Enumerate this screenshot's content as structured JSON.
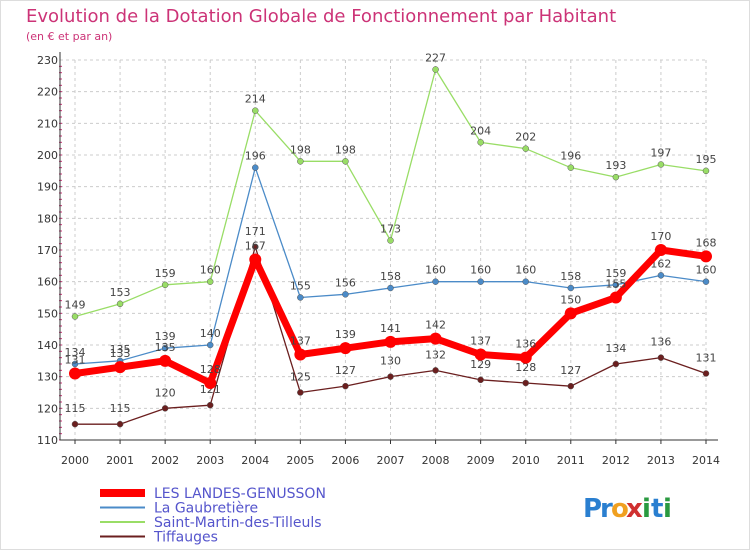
{
  "chart_data": {
    "type": "line",
    "title": "Evolution de la Dotation Globale de Fonctionnement par Habitant",
    "subtitle": "(en € et par an)",
    "x": [
      "2000",
      "2001",
      "2002",
      "2003",
      "2004",
      "2005",
      "2006",
      "2007",
      "2008",
      "2009",
      "2010",
      "2011",
      "2012",
      "2013",
      "2014"
    ],
    "ylim": [
      110,
      230
    ],
    "yticks": [
      110,
      120,
      130,
      140,
      150,
      160,
      170,
      180,
      190,
      200,
      210,
      220,
      230
    ],
    "grid": true,
    "legend_position": "bottom-left",
    "series": [
      {
        "name": "LES LANDES-GENUSSON",
        "color": "#ff0000",
        "values": [
          131,
          133,
          135,
          128,
          167,
          137,
          139,
          141,
          142,
          137,
          136,
          150,
          155,
          170,
          168
        ]
      },
      {
        "name": "La Gaubretière",
        "color": "#4b8bc8",
        "values": [
          134,
          135,
          139,
          140,
          196,
          155,
          156,
          158,
          160,
          160,
          160,
          158,
          159,
          162,
          160
        ]
      },
      {
        "name": "Saint-Martin-des-Tilleuls",
        "color": "#99dd66",
        "values": [
          149,
          153,
          159,
          160,
          214,
          198,
          198,
          173,
          227,
          204,
          202,
          196,
          193,
          197,
          195
        ]
      },
      {
        "name": "Tiffauges",
        "color": "#6b1f1f",
        "values": [
          115,
          115,
          120,
          121,
          171,
          125,
          127,
          130,
          132,
          129,
          128,
          127,
          134,
          136,
          131
        ]
      }
    ],
    "draw_order": [
      3,
      2,
      1,
      0
    ]
  },
  "logo": {
    "text": "Proxiti",
    "letters": [
      "P",
      "r",
      "o",
      "x",
      "i",
      "t",
      "i"
    ],
    "colors": [
      "#2a7fd0",
      "#2a7fd0",
      "#f0a020",
      "#d03030",
      "#2a9a40",
      "#2a7fd0",
      "#2a9a40"
    ]
  },
  "colors": {
    "title": "#cc3377",
    "axis": "#333333",
    "grid": "#cccccc",
    "legend_text": "#5555cc",
    "tick_mark": "#cc3377"
  }
}
